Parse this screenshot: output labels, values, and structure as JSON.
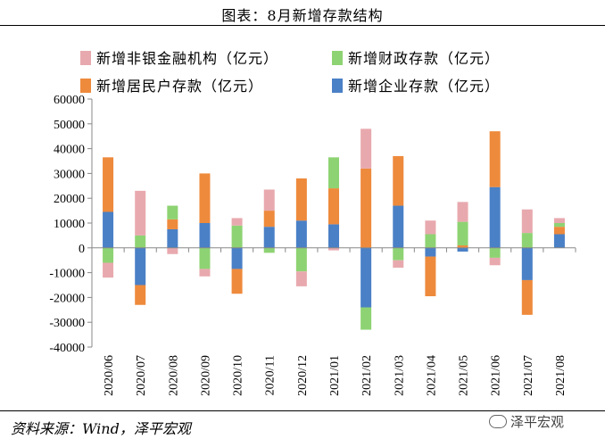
{
  "header": {
    "title": "图表：8月新增存款结构"
  },
  "footer": {
    "source": "资料来源：Wind，泽平宏观",
    "watermark": "泽平宏观"
  },
  "colors": {
    "nonbank": "#E8A9AE",
    "fiscal": "#8ED373",
    "household": "#EE8A3C",
    "corporate": "#4A80C6",
    "axis": "#888888"
  },
  "chart_data": {
    "type": "bar",
    "stacked": true,
    "title": "图表：8月新增存款结构",
    "xlabel": "",
    "ylabel": "",
    "ylim": [
      -40000,
      60000
    ],
    "yticks": [
      60000,
      50000,
      40000,
      30000,
      20000,
      10000,
      0,
      -10000,
      -20000,
      -30000,
      -40000
    ],
    "legend_position": "top",
    "categories": [
      "2020/06",
      "2020/07",
      "2020/08",
      "2020/09",
      "2020/10",
      "2020/11",
      "2020/12",
      "2021/01",
      "2021/02",
      "2021/03",
      "2021/04",
      "2021/05",
      "2021/06",
      "2021/07",
      "2021/08"
    ],
    "series": [
      {
        "key": "nonbank",
        "name": "新增非银金融机构（亿元）",
        "values": [
          -6000,
          18000,
          -2500,
          -3000,
          3000,
          8500,
          -6000,
          -1000,
          16000,
          -3000,
          5500,
          8000,
          -3000,
          9500,
          2000
        ]
      },
      {
        "key": "fiscal",
        "name": "新增财政存款（亿元）",
        "values": [
          -6000,
          5000,
          5500,
          -8500,
          9000,
          -2000,
          -9500,
          12500,
          -9000,
          -5000,
          5500,
          9500,
          -4000,
          6000,
          1500
        ]
      },
      {
        "key": "household",
        "name": "新增居民户存款（亿元）",
        "values": [
          22000,
          -8000,
          4000,
          20000,
          -10000,
          6500,
          17000,
          14500,
          32000,
          20000,
          -16000,
          1000,
          22500,
          -14000,
          3000
        ]
      },
      {
        "key": "corporate",
        "name": "新增企业存款（亿元）",
        "values": [
          14500,
          -15000,
          7500,
          10000,
          -8500,
          8500,
          11000,
          9500,
          -24000,
          17000,
          -3500,
          -1500,
          24500,
          -13000,
          5500
        ]
      }
    ],
    "legend_order": [
      "nonbank",
      "fiscal",
      "household",
      "corporate"
    ]
  }
}
